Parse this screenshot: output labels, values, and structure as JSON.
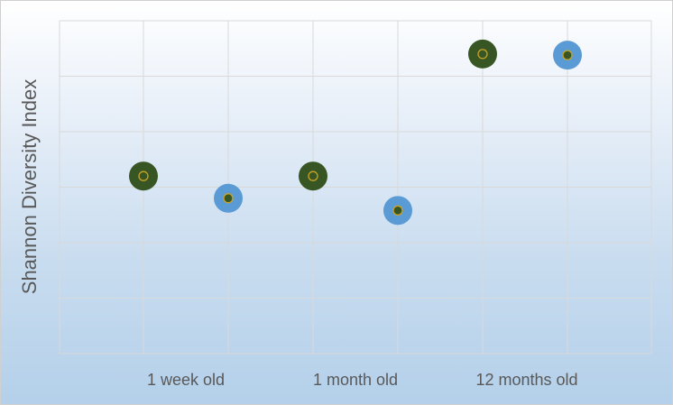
{
  "chart_data": {
    "type": "scatter",
    "title": "",
    "xlabel": "",
    "ylabel": "Shannon Diversity Index",
    "x_tick_labels": [
      "1 week old",
      "1 month old",
      "12 months old"
    ],
    "ylim": [
      0,
      6
    ],
    "grid": true,
    "legend": "none",
    "points": [
      {
        "group": "1 week old",
        "color": "#375623",
        "y": 3.2
      },
      {
        "group": "1 week old",
        "color": "#5b9bd5",
        "y": 2.8
      },
      {
        "group": "1 month old",
        "color": "#375623",
        "y": 3.2
      },
      {
        "group": "1 month old",
        "color": "#5b9bd5",
        "y": 2.58
      },
      {
        "group": "12 months old",
        "color": "#375623",
        "y": 5.4
      },
      {
        "group": "12 months old",
        "color": "#5b9bd5",
        "y": 5.38
      }
    ]
  },
  "colors": {
    "grid": "#d9d9d9",
    "green_marker": "#375623",
    "blue_marker": "#5b9bd5",
    "marker_center_ring": "#c9a227"
  }
}
